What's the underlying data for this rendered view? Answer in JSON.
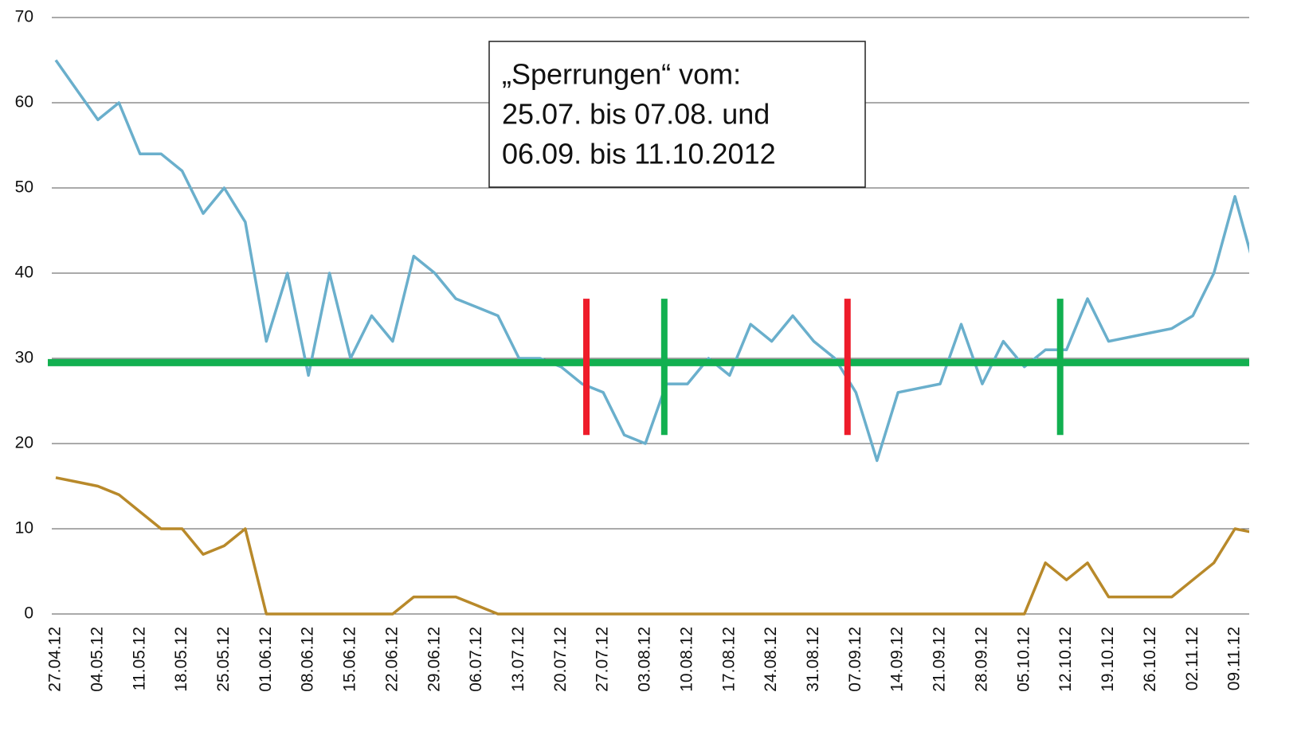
{
  "chart_data": {
    "type": "line",
    "annotation": [
      "„Sperrungen“ vom:",
      "25.07. bis 07.08. und",
      "06.09. bis 11.10.2012"
    ],
    "categories": [
      "27.04.12",
      null,
      "04.05.12",
      null,
      "11.05.12",
      null,
      "18.05.12",
      null,
      "25.05.12",
      null,
      "01.06.12",
      null,
      "08.06.12",
      null,
      "15.06.12",
      null,
      "22.06.12",
      null,
      "29.06.12",
      null,
      "06.07.12",
      null,
      "13.07.12",
      null,
      "20.07.12",
      null,
      "27.07.12",
      null,
      "03.08.12",
      null,
      "10.08.12",
      null,
      "17.08.12",
      null,
      "24.08.12",
      null,
      "31.08.12",
      null,
      "07.09.12",
      null,
      "14.09.12",
      null,
      "21.09.12",
      null,
      "28.09.12",
      null,
      "05.10.12",
      null,
      "12.10.12",
      null,
      "19.10.12",
      null,
      "26.10.12",
      null,
      "02.11.12",
      null,
      "09.11.12",
      null
    ],
    "series": [
      {
        "color": "#6aafcc",
        "values": [
          65,
          61.5,
          58,
          60,
          54,
          54,
          52,
          47,
          50,
          46,
          32,
          40,
          28,
          40,
          30,
          35,
          32,
          42,
          40,
          37,
          36,
          35,
          30,
          30,
          29,
          27,
          26,
          21,
          20,
          27,
          27,
          30,
          28,
          34,
          32,
          35,
          32,
          30,
          26,
          18,
          26,
          26.5,
          27,
          34,
          27,
          32,
          29,
          31,
          31,
          37,
          32,
          32.5,
          33,
          33.5,
          35,
          40,
          49,
          40
        ]
      },
      {
        "color": "#b8892a",
        "values": [
          16,
          15.5,
          15,
          14,
          12,
          10,
          10,
          7,
          8,
          10,
          0,
          0,
          0,
          0,
          0,
          0,
          0,
          2,
          2,
          2,
          1,
          0,
          0,
          0,
          0,
          0,
          0,
          0,
          0,
          0,
          0,
          0,
          0,
          0,
          0,
          0,
          0,
          0,
          0,
          0,
          0,
          0,
          0,
          0,
          0,
          0,
          0,
          6,
          4,
          6,
          2,
          2,
          2,
          2,
          4,
          6,
          10,
          9.5
        ]
      }
    ],
    "reference_line": {
      "y": 29.5,
      "color": "#12b050"
    },
    "markers": [
      {
        "x": 25.2,
        "ymin": 21,
        "ymax": 37,
        "color": "#ee1c2a"
      },
      {
        "x": 28.9,
        "ymin": 21,
        "ymax": 37,
        "color": "#12b050"
      },
      {
        "x": 37.6,
        "ymin": 21,
        "ymax": 37,
        "color": "#ee1c2a"
      },
      {
        "x": 47.7,
        "ymin": 21,
        "ymax": 37,
        "color": "#12b050"
      }
    ],
    "ylim": [
      0,
      70
    ],
    "yticks": [
      0,
      10,
      20,
      30,
      40,
      50,
      60,
      70
    ],
    "grid": true
  }
}
